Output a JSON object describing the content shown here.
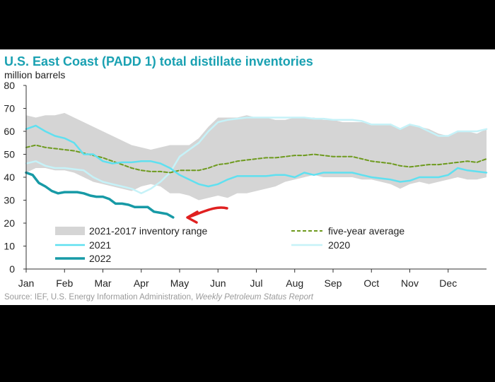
{
  "title": "U.S. East Coast (PADD 1) total distillate inventories",
  "unit_label": "million barrels",
  "source_text": "Source: IEF, U.S. Energy Information Administration, ",
  "source_publication": "Weekly Petroleum Status Report",
  "colors": {
    "title": "#1aa1b2",
    "range_fill": "#d5d5d5",
    "five_year_average": "#6e9a1e",
    "series_2021": "#5fe0f0",
    "series_2020": "#c6f2f8",
    "series_2022": "#179aa6",
    "annotation_arrow": "#e02020"
  },
  "chart_data": {
    "type": "line",
    "xlabel": "",
    "ylabel": "million barrels",
    "ylim": [
      0,
      80
    ],
    "yticks": [
      0,
      10,
      20,
      30,
      40,
      50,
      60,
      70,
      80
    ],
    "xlim": [
      0,
      12
    ],
    "month_labels": [
      "Jan",
      "Feb",
      "Mar",
      "Apr",
      "May",
      "Jun",
      "Jul",
      "Aug",
      "Sep",
      "Oct",
      "Nov",
      "Dec"
    ],
    "grid": false,
    "legend_placement": "bottom-left, inside plot",
    "range_band": {
      "name": "2021-2017 inventory range",
      "x": [
        0,
        0.25,
        0.5,
        0.75,
        1.0,
        1.25,
        1.5,
        1.75,
        2.0,
        2.25,
        2.5,
        2.75,
        3.0,
        3.25,
        3.5,
        3.75,
        4.0,
        4.25,
        4.5,
        4.75,
        5.0,
        5.25,
        5.5,
        5.75,
        6.0,
        6.25,
        6.5,
        6.75,
        7.0,
        7.25,
        7.5,
        7.75,
        8.0,
        8.25,
        8.5,
        8.75,
        9.0,
        9.25,
        9.5,
        9.75,
        10.0,
        10.25,
        10.5,
        10.75,
        11.0,
        11.25,
        11.5,
        11.75,
        12.0
      ],
      "upper": [
        67,
        66,
        67,
        67,
        68,
        66,
        64,
        62,
        60,
        58,
        56,
        54,
        53,
        52,
        53,
        54,
        54,
        54,
        57,
        62,
        66,
        66,
        66,
        67,
        66,
        66,
        65,
        65,
        66,
        66,
        66,
        65,
        65,
        64,
        64,
        64,
        63,
        63,
        63,
        61,
        63,
        62,
        61,
        59,
        58,
        60,
        60,
        59,
        61
      ],
      "lower": [
        42,
        44,
        44,
        43,
        43,
        42,
        40,
        38,
        37,
        36,
        35,
        34,
        36,
        37,
        36,
        33,
        33,
        32,
        30,
        31,
        32,
        31,
        33,
        33,
        34,
        35,
        36,
        38,
        39,
        40,
        41,
        40,
        40,
        40,
        40,
        39,
        39,
        38,
        37,
        35,
        37,
        38,
        37,
        38,
        39,
        40,
        39,
        39,
        40
      ]
    },
    "series": [
      {
        "name": "five-year average",
        "style": "dashed",
        "x": [
          0,
          0.25,
          0.5,
          0.75,
          1.0,
          1.25,
          1.5,
          1.75,
          2.0,
          2.25,
          2.5,
          2.75,
          3.0,
          3.25,
          3.5,
          3.75,
          4.0,
          4.25,
          4.5,
          4.75,
          5.0,
          5.25,
          5.5,
          5.75,
          6.0,
          6.25,
          6.5,
          6.75,
          7.0,
          7.25,
          7.5,
          7.75,
          8.0,
          8.25,
          8.5,
          8.75,
          9.0,
          9.25,
          9.5,
          9.75,
          10.0,
          10.25,
          10.5,
          10.75,
          11.0,
          11.25,
          11.5,
          11.75,
          12.0
        ],
        "values": [
          53,
          54,
          53,
          52.5,
          52,
          51.5,
          50.5,
          49.5,
          48.5,
          47,
          45.5,
          44,
          43,
          42.5,
          42.5,
          42,
          43,
          43,
          43,
          44,
          45.5,
          46,
          47,
          47.5,
          48,
          48.5,
          48.5,
          49,
          49.5,
          49.5,
          50,
          49.5,
          49,
          49,
          49,
          48,
          47,
          46.5,
          46,
          45,
          44.5,
          45,
          45.5,
          45.5,
          46,
          46.5,
          47,
          46.5,
          48
        ]
      },
      {
        "name": "2021",
        "x": [
          0,
          0.25,
          0.5,
          0.75,
          1.0,
          1.25,
          1.5,
          1.75,
          2.0,
          2.25,
          2.5,
          2.75,
          3.0,
          3.25,
          3.5,
          3.75,
          4.0,
          4.25,
          4.5,
          4.75,
          5.0,
          5.25,
          5.5,
          5.75,
          6.0,
          6.25,
          6.5,
          6.75,
          7.0,
          7.25,
          7.5,
          7.75,
          8.0,
          8.25,
          8.5,
          8.75,
          9.0,
          9.25,
          9.5,
          9.75,
          10.0,
          10.25,
          10.5,
          10.75,
          11.0,
          11.25,
          11.5,
          11.75,
          12.0
        ],
        "values": [
          61,
          62.5,
          60,
          58,
          57,
          55,
          50,
          50,
          47,
          46,
          46.5,
          46.5,
          47,
          47,
          46,
          44,
          41,
          39,
          37,
          36,
          37,
          39,
          40.5,
          40.5,
          40.5,
          40.5,
          41,
          41,
          40,
          42,
          41,
          42,
          42,
          42,
          42,
          41,
          40,
          39.5,
          39,
          38,
          38.5,
          40,
          40,
          40,
          41,
          44,
          43,
          42.5,
          42
        ]
      },
      {
        "name": "2020",
        "x": [
          0,
          0.25,
          0.5,
          0.75,
          1.0,
          1.25,
          1.5,
          1.75,
          2.0,
          2.25,
          2.5,
          2.75,
          3.0,
          3.25,
          3.5,
          3.75,
          4.0,
          4.25,
          4.5,
          4.75,
          5.0,
          5.25,
          5.5,
          5.75,
          6.0,
          6.25,
          6.5,
          6.75,
          7.0,
          7.25,
          7.5,
          7.75,
          8.0,
          8.25,
          8.5,
          8.75,
          9.0,
          9.25,
          9.5,
          9.75,
          10.0,
          10.25,
          10.5,
          10.75,
          11.0,
          11.25,
          11.5,
          11.75,
          12.0
        ],
        "values": [
          46,
          47,
          45,
          44,
          44,
          43.5,
          43,
          40,
          38,
          37,
          36,
          35,
          33,
          35,
          38,
          42,
          49,
          52,
          55,
          60,
          64,
          65,
          65.5,
          66,
          66,
          66,
          66,
          66,
          66,
          66,
          65.5,
          65.5,
          65,
          65,
          65,
          64.5,
          63,
          63,
          63,
          61,
          63,
          62,
          60,
          58,
          58,
          60,
          60,
          60,
          61
        ]
      },
      {
        "name": "2022",
        "x": [
          0,
          0.17,
          0.33,
          0.5,
          0.67,
          0.83,
          1.0,
          1.17,
          1.33,
          1.5,
          1.67,
          1.83,
          2.0,
          2.17,
          2.33,
          2.5,
          2.67,
          2.83,
          3.0,
          3.17,
          3.33,
          3.5,
          3.67,
          3.83
        ],
        "values": [
          42,
          41,
          37.5,
          36,
          34,
          33,
          33.5,
          33.5,
          33.5,
          33,
          32,
          31.5,
          31.5,
          30.5,
          28.5,
          28.5,
          28,
          27,
          27,
          27,
          25,
          24.5,
          24,
          22.5
        ]
      }
    ],
    "legend": [
      {
        "label": "2021-2017 inventory range",
        "key": "range"
      },
      {
        "label": "five-year average",
        "key": "five-year average"
      },
      {
        "label": "2021",
        "key": "2021"
      },
      {
        "label": "2020",
        "key": "2020"
      },
      {
        "label": "2022",
        "key": "2022"
      }
    ],
    "annotation": "hand-drawn red arrow pointing at the latest 2022 value"
  }
}
